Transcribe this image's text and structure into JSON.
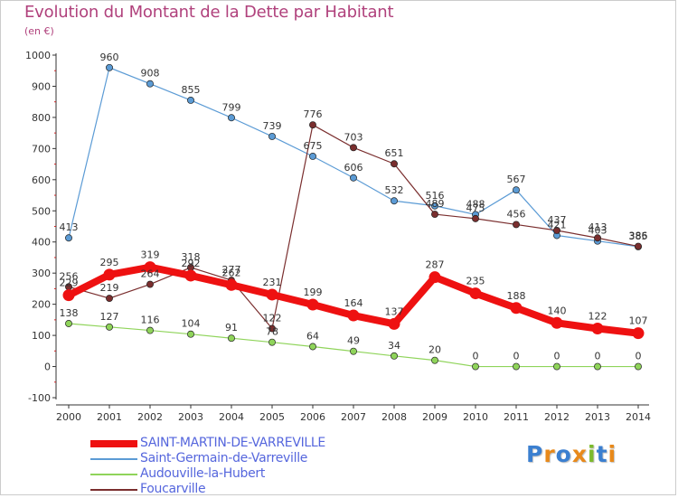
{
  "title": "Evolution du Montant de la Dette par Habitant",
  "unit_label": "(en €)",
  "brand_logo": {
    "text": "Proxiti",
    "letters": [
      {
        "ch": "P",
        "color": "#3b7fd0"
      },
      {
        "ch": "r",
        "color": "#e8891a"
      },
      {
        "ch": "o",
        "color": "#3b7fd0"
      },
      {
        "ch": "x",
        "color": "#e8891a"
      },
      {
        "ch": "i",
        "color": "#7cba2c"
      },
      {
        "ch": "t",
        "color": "#3b7fd0"
      },
      {
        "ch": "i",
        "color": "#e8891a"
      }
    ]
  },
  "chart_data": {
    "type": "line",
    "title": "Evolution du Montant de la Dette par Habitant",
    "ylabel": "(en €)",
    "xlabel": "",
    "x": [
      "2000",
      "2001",
      "2002",
      "2003",
      "2004",
      "2005",
      "2006",
      "2007",
      "2008",
      "2009",
      "2010",
      "2011",
      "2012",
      "2013",
      "2014"
    ],
    "ylim": [
      -100,
      1000
    ],
    "yticks": [
      -100,
      0,
      100,
      200,
      300,
      400,
      500,
      600,
      700,
      800,
      900,
      1000
    ],
    "grid": false,
    "legend_position": "bottom-left",
    "series": [
      {
        "name": "SAINT-MARTIN-DE-VARREVILLE",
        "color": "#ee1111",
        "emphasis": true,
        "values": [
          229,
          295,
          319,
          292,
          262,
          231,
          199,
          164,
          137,
          287,
          235,
          188,
          140,
          122,
          107
        ]
      },
      {
        "name": "Saint-Germain-de-Varreville",
        "color": "#5b9bd5",
        "emphasis": false,
        "values": [
          413,
          960,
          908,
          855,
          799,
          739,
          675,
          606,
          532,
          516,
          488,
          567,
          421,
          403,
          385
        ]
      },
      {
        "name": "Audouville-la-Hubert",
        "color": "#8fd45a",
        "emphasis": false,
        "values": [
          138,
          127,
          116,
          104,
          91,
          78,
          64,
          49,
          34,
          20,
          0,
          0,
          0,
          0,
          0
        ]
      },
      {
        "name": "Foucarville",
        "color": "#7a2e2e",
        "emphasis": false,
        "values": [
          256,
          219,
          264,
          318,
          277,
          122,
          776,
          703,
          651,
          489,
          475,
          456,
          437,
          413,
          386
        ]
      }
    ]
  }
}
